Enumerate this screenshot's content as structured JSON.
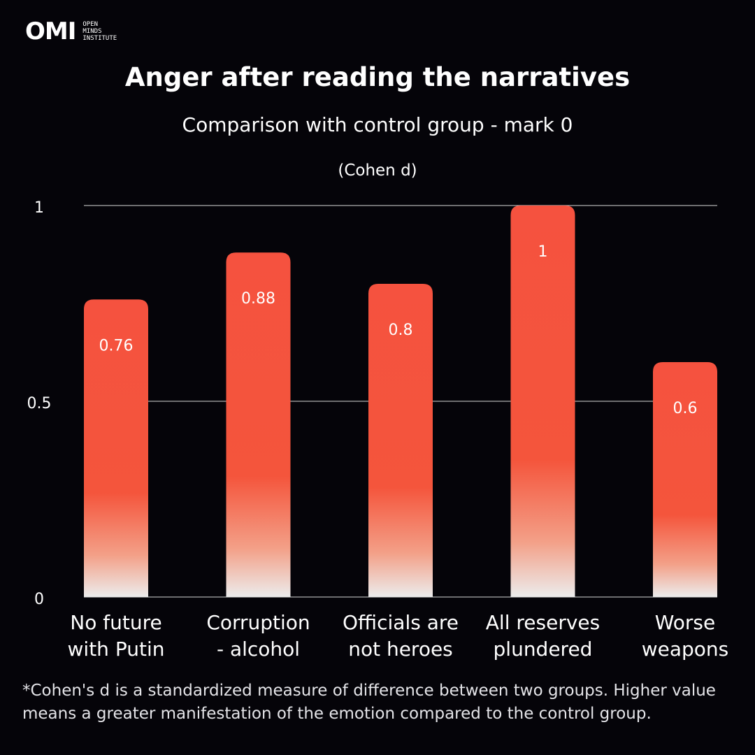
{
  "logo": {
    "mark": "OMI",
    "line1": "OPEN",
    "line2": "MINDS",
    "line3": "INSTITUTE"
  },
  "title": "Anger after reading the narratives",
  "subtitle": "Comparison with control group - mark 0",
  "unit_label": "(Cohen d)",
  "footnote": "*Cohen's d is a standardized measure of difference between two groups. Higher value means a greater manifestation of the emotion compared to the control group.",
  "colors": {
    "background": "#050409",
    "bar_top": "#f5523f",
    "bar_mid": "#f4553c",
    "bar_bottom": "#ececec",
    "gridline": "#d8d8d8"
  },
  "chart_data": {
    "type": "bar",
    "title": "Anger after reading the narratives",
    "subtitle": "Comparison with control group - mark 0",
    "ylabel": "(Cohen d)",
    "xlabel": "",
    "categories": [
      "No future\nwith Putin",
      "Corruption\n- alcohol",
      "Officials are\nnot heroes",
      "All reserves\nplundered",
      "Worse\nweapons"
    ],
    "values": [
      0.76,
      0.88,
      0.8,
      1,
      0.6
    ],
    "value_labels": [
      "0.76",
      "0.88",
      "0.8",
      "1",
      "0.6"
    ],
    "ylim": [
      0,
      1
    ],
    "yticks": [
      0,
      0.5,
      1
    ],
    "ytick_labels": [
      "0",
      "0.5",
      "1"
    ],
    "grid": true
  }
}
